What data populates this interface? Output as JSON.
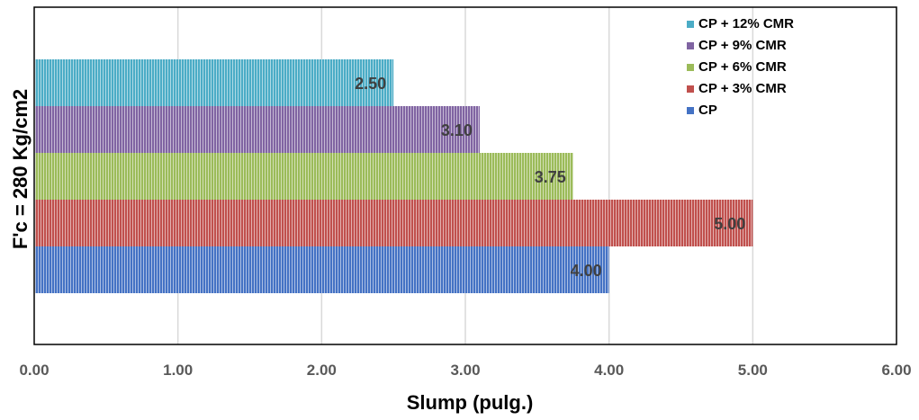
{
  "chart_data": {
    "type": "bar",
    "orientation": "horizontal",
    "xlabel": "Slump (pulg.)",
    "ylabel": "F'c = 280 Kg/cm2",
    "xlim": [
      0,
      6
    ],
    "x_ticks": [
      "0.00",
      "1.00",
      "2.00",
      "3.00",
      "4.00",
      "5.00",
      "6.00"
    ],
    "grid": "vertical",
    "legend_position": "top-right",
    "series": [
      {
        "name": "CP",
        "value": 4.0,
        "label": "4.00",
        "color": "#4472C4"
      },
      {
        "name": "CP + 3% CMR",
        "value": 5.0,
        "label": "5.00",
        "color": "#C0504D"
      },
      {
        "name": "CP + 6% CMR",
        "value": 3.75,
        "label": "3.75",
        "color": "#9BBB59"
      },
      {
        "name": "CP + 9% CMR",
        "value": 3.1,
        "label": "3.10",
        "color": "#8064A2"
      },
      {
        "name": "CP + 12% CMR",
        "value": 2.5,
        "label": "2.50",
        "color": "#4BACC6"
      }
    ]
  }
}
